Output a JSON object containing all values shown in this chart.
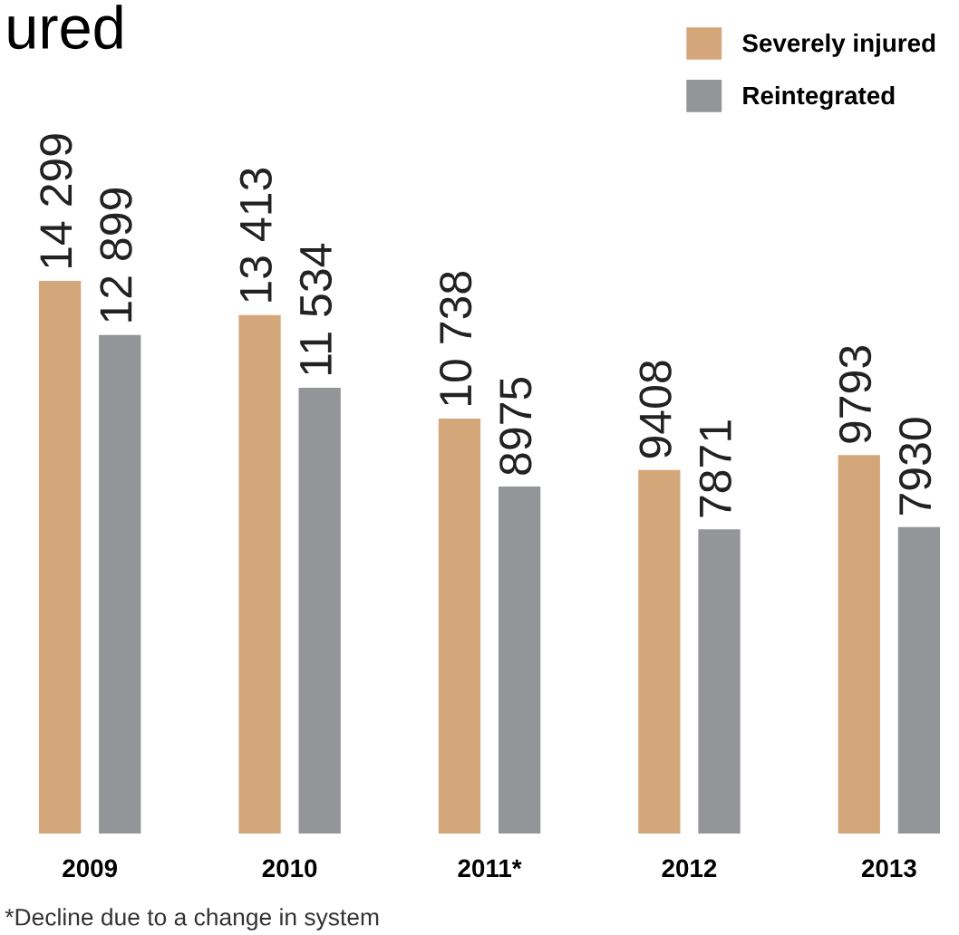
{
  "chart_data": {
    "type": "bar",
    "title": "ured",
    "categories": [
      "2009",
      "2010",
      "2011*",
      "2012",
      "2013"
    ],
    "series": [
      {
        "name": "Severely injured",
        "color": "#d4a77a",
        "values": [
          14299,
          13413,
          10738,
          9408,
          9793
        ],
        "value_labels": [
          "14 299",
          "13 413",
          "10 738",
          "9408",
          "9793"
        ]
      },
      {
        "name": "Reintegrated",
        "color": "#939598",
        "values": [
          12899,
          11534,
          8975,
          7871,
          7930
        ],
        "value_labels": [
          "12 899",
          "11 534",
          "8975",
          "7871",
          "7930"
        ]
      }
    ],
    "legend": "top right",
    "grid": false,
    "annotations": [
      "*Decline due to a change in system"
    ]
  }
}
